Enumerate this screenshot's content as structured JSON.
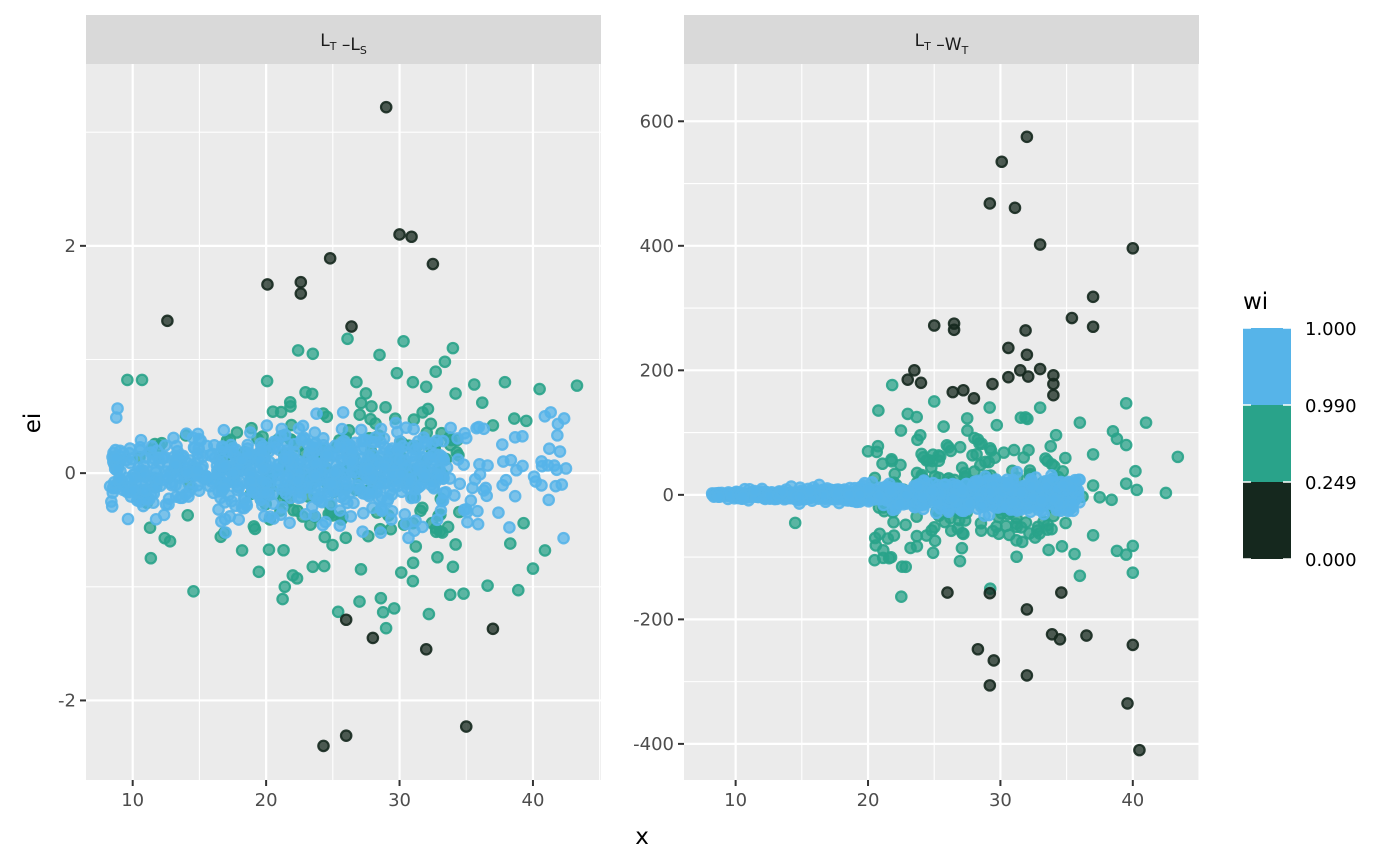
{
  "chart_data": [
    {
      "type": "scatter",
      "panel_label": {
        "main1": "L",
        "sub1": "T",
        "sep": " –",
        "main2": "L",
        "sub2": "S"
      },
      "xlabel": "x",
      "ylabel": "ei",
      "xlim": [
        6.5,
        45.1
      ],
      "ylim": [
        -2.7,
        3.6
      ],
      "x_ticks": [
        10,
        20,
        30,
        40
      ],
      "y_ticks": [
        -2,
        0,
        2
      ],
      "x_tick_labels": [
        "10",
        "20",
        "30",
        "40"
      ],
      "y_tick_labels": [
        "-2",
        "0",
        "2"
      ],
      "outliers_dark": [
        [
          29.0,
          3.22
        ],
        [
          30.0,
          2.1
        ],
        [
          30.9,
          2.08
        ],
        [
          32.5,
          1.84
        ],
        [
          24.8,
          1.89
        ],
        [
          20.1,
          1.66
        ],
        [
          22.6,
          1.68
        ],
        [
          22.6,
          1.58
        ],
        [
          12.6,
          1.34
        ],
        [
          26.4,
          1.29
        ],
        [
          26.0,
          -1.29
        ],
        [
          28.0,
          -1.45
        ],
        [
          32.0,
          -1.55
        ],
        [
          37.0,
          -1.37
        ],
        [
          35.0,
          -2.23
        ],
        [
          24.3,
          -2.4
        ],
        [
          26.0,
          -2.31
        ]
      ],
      "outliers_mid": [
        [
          9.6,
          0.82
        ],
        [
          10.7,
          0.82
        ],
        [
          30.3,
          1.16
        ],
        [
          34.0,
          1.1
        ],
        [
          22.4,
          1.08
        ],
        [
          23.5,
          1.05
        ],
        [
          28.5,
          1.04
        ],
        [
          29.8,
          0.88
        ],
        [
          33.4,
          0.98
        ],
        [
          35.6,
          0.78
        ],
        [
          37.9,
          0.8
        ],
        [
          40.5,
          0.74
        ],
        [
          43.3,
          0.77
        ],
        [
          32.0,
          0.76
        ],
        [
          31.0,
          0.8
        ],
        [
          38.6,
          0.48
        ],
        [
          39.5,
          0.46
        ],
        [
          34.2,
          0.7
        ],
        [
          36.2,
          0.62
        ],
        [
          37.0,
          0.42
        ],
        [
          25.4,
          -1.22
        ],
        [
          27.0,
          -1.13
        ],
        [
          28.6,
          -1.1
        ],
        [
          29.6,
          -1.19
        ],
        [
          32.2,
          -1.24
        ],
        [
          33.8,
          -1.07
        ],
        [
          34.8,
          -1.06
        ],
        [
          31.0,
          -0.95
        ],
        [
          36.6,
          -0.99
        ],
        [
          38.3,
          -0.62
        ],
        [
          38.9,
          -1.03
        ],
        [
          39.3,
          -0.44
        ],
        [
          40.0,
          -0.84
        ],
        [
          40.9,
          -0.68
        ],
        [
          18.2,
          -0.68
        ],
        [
          22.0,
          -0.9
        ],
        [
          21.4,
          -1.0
        ],
        [
          16.6,
          -0.56
        ],
        [
          12.8,
          -0.6
        ],
        [
          11.3,
          -0.48
        ]
      ],
      "dense_clouds": [
        {
          "x_range": [
            8.3,
            16.5
          ],
          "y_sd": 0.16,
          "count": 200,
          "wi": "high",
          "seed": 11
        },
        {
          "x_range": [
            16.5,
            33.5
          ],
          "y_sd": 0.2,
          "count": 520,
          "wi": "high",
          "seed": 12
        },
        {
          "x_range": [
            33.5,
            42.5
          ],
          "y_sd": 0.24,
          "count": 60,
          "wi": "high",
          "seed": 13
        },
        {
          "x_range": [
            19.0,
            34.5
          ],
          "y_sd": 0.42,
          "count": 170,
          "wi": "mid",
          "seed": 14
        },
        {
          "x_range": [
            10.0,
            19.0
          ],
          "y_sd": 0.33,
          "count": 24,
          "wi": "mid",
          "seed": 15
        }
      ]
    },
    {
      "type": "scatter",
      "panel_label": {
        "main1": "L",
        "sub1": "T",
        "sep": " –",
        "main2": "W",
        "sub2": "T"
      },
      "xlabel": "x",
      "ylabel": "ei",
      "xlim": [
        6.1,
        45.0
      ],
      "ylim": [
        -458,
        692
      ],
      "x_ticks": [
        10,
        20,
        30,
        40
      ],
      "y_ticks": [
        -400,
        -200,
        0,
        200,
        400,
        600
      ],
      "x_tick_labels": [
        "10",
        "20",
        "30",
        "40"
      ],
      "y_tick_labels": [
        "-400",
        "-200",
        "0",
        "200",
        "400",
        "600"
      ],
      "outliers_dark": [
        [
          32.0,
          575
        ],
        [
          30.1,
          535
        ],
        [
          29.2,
          468
        ],
        [
          31.1,
          461
        ],
        [
          33.0,
          402
        ],
        [
          40.0,
          396
        ],
        [
          37.0,
          318
        ],
        [
          35.4,
          284
        ],
        [
          37.0,
          270
        ],
        [
          25.0,
          272
        ],
        [
          26.5,
          275
        ],
        [
          26.5,
          265
        ],
        [
          31.9,
          264
        ],
        [
          30.6,
          236
        ],
        [
          32.0,
          225
        ],
        [
          23.5,
          200
        ],
        [
          23.0,
          185
        ],
        [
          24.0,
          180
        ],
        [
          26.4,
          165
        ],
        [
          27.2,
          168
        ],
        [
          28.0,
          155
        ],
        [
          29.4,
          178
        ],
        [
          30.6,
          189
        ],
        [
          31.5,
          200
        ],
        [
          32.1,
          190
        ],
        [
          33.0,
          202
        ],
        [
          34.0,
          192
        ],
        [
          34.0,
          178
        ],
        [
          34.0,
          160
        ],
        [
          26.0,
          -157
        ],
        [
          29.2,
          -158
        ],
        [
          32.0,
          -184
        ],
        [
          34.6,
          -157
        ],
        [
          28.3,
          -248
        ],
        [
          29.5,
          -266
        ],
        [
          29.2,
          -306
        ],
        [
          32.0,
          -290
        ],
        [
          33.9,
          -224
        ],
        [
          34.5,
          -232
        ],
        [
          36.5,
          -226
        ],
        [
          40.0,
          -241
        ],
        [
          39.6,
          -335
        ],
        [
          40.5,
          -410
        ]
      ],
      "outliers_mid": [
        [
          36.0,
          116
        ],
        [
          38.5,
          102
        ],
        [
          39.5,
          147
        ],
        [
          41.0,
          116
        ],
        [
          43.4,
          61
        ],
        [
          40.2,
          38
        ],
        [
          39.5,
          80
        ],
        [
          38.8,
          90
        ],
        [
          37.0,
          65
        ],
        [
          33.8,
          78
        ],
        [
          35.6,
          14
        ],
        [
          37.0,
          15
        ],
        [
          39.5,
          18
        ],
        [
          40.3,
          8
        ],
        [
          42.5,
          3
        ],
        [
          36.2,
          -3
        ],
        [
          37.5,
          -4
        ],
        [
          38.4,
          -8
        ],
        [
          37.0,
          -65
        ],
        [
          35.6,
          -95
        ],
        [
          36.0,
          -130
        ],
        [
          38.8,
          -90
        ],
        [
          39.5,
          -96
        ],
        [
          40.0,
          -82
        ],
        [
          40.0,
          -125
        ],
        [
          20.0,
          70
        ],
        [
          20.5,
          -105
        ],
        [
          14.5,
          -45
        ],
        [
          23.0,
          130
        ],
        [
          25.0,
          150
        ],
        [
          33.0,
          140
        ]
      ],
      "dense_clouds": [
        {
          "x_range": [
            8.2,
            36.0
          ],
          "y_sd_at_start": 1.5,
          "y_sd_at_end": 16,
          "count": 1000,
          "wi": "high",
          "seed": 21
        },
        {
          "x_range": [
            20.5,
            35.0
          ],
          "y_sd": 55,
          "count": 230,
          "wi": "mid",
          "seed": 22
        }
      ]
    }
  ],
  "legend": {
    "title": "wi",
    "colors": [
      "#56B4E9",
      "#29A38A",
      "#15281E"
    ],
    "labels": [
      "1.000",
      "0.990",
      "0.249",
      "0.000"
    ]
  },
  "colors": {
    "high": "#56B4E9",
    "mid": "#29A38A",
    "low": "#15281E"
  }
}
